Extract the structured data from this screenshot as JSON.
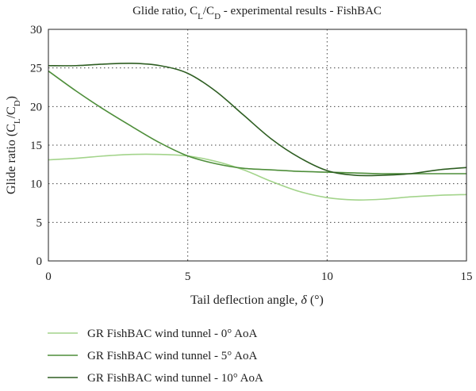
{
  "chart_data": {
    "type": "line",
    "title": "Glide ratio, C_L/C_D - experimental results - FishBAC",
    "title_parts": {
      "pre": "Glide ratio, C",
      "sub1": "L",
      "mid": "/C",
      "sub2": "D",
      "post": " - experimental results - FishBAC"
    },
    "xlabel": "Tail deflection angle, δ (°)",
    "xlabel_parts": {
      "pre": "Tail deflection angle, ",
      "sym": "δ",
      "post": " (°)"
    },
    "ylabel": "Glide ratio (C_L/C_D)",
    "ylabel_parts": {
      "pre": "Glide ratio (C",
      "sub1": "L",
      "mid": "/C",
      "sub2": "D",
      "post": ")"
    },
    "xlim": [
      0,
      15
    ],
    "ylim": [
      0,
      30
    ],
    "xticks": [
      0,
      5,
      10,
      15
    ],
    "yticks": [
      0,
      5,
      10,
      15,
      20,
      25,
      30
    ],
    "grid": true,
    "legend_position": "bottom",
    "series": [
      {
        "name": "GR FishBAC wind tunnel - 0° AoA",
        "color": "#a3d48b",
        "x": [
          0,
          1,
          2,
          3,
          4,
          5,
          6,
          7,
          8,
          9,
          10,
          11,
          12,
          13,
          14,
          15
        ],
        "values": [
          13.1,
          13.3,
          13.6,
          13.8,
          13.8,
          13.6,
          12.9,
          11.8,
          10.3,
          9.0,
          8.2,
          7.9,
          8.0,
          8.3,
          8.5,
          8.6
        ]
      },
      {
        "name": "GR FishBAC wind tunnel - 5° AoA",
        "color": "#4e8e3a",
        "x": [
          0,
          1,
          2,
          3,
          4,
          5,
          6,
          7,
          8,
          9,
          10,
          11,
          12,
          13,
          14,
          15
        ],
        "values": [
          24.6,
          22.0,
          19.6,
          17.4,
          15.3,
          13.6,
          12.6,
          12.0,
          11.8,
          11.6,
          11.5,
          11.4,
          11.3,
          11.3,
          11.3,
          11.3
        ]
      },
      {
        "name": "GR FishBAC wind tunnel - 10° AoA",
        "color": "#2e5e22",
        "x": [
          0,
          1,
          2,
          3,
          4,
          5,
          6,
          7,
          8,
          9,
          10,
          11,
          12,
          13,
          14,
          15
        ],
        "values": [
          25.3,
          25.3,
          25.5,
          25.6,
          25.3,
          24.3,
          22.0,
          18.9,
          15.8,
          13.4,
          11.7,
          11.1,
          11.1,
          11.3,
          11.8,
          12.1
        ]
      }
    ]
  }
}
